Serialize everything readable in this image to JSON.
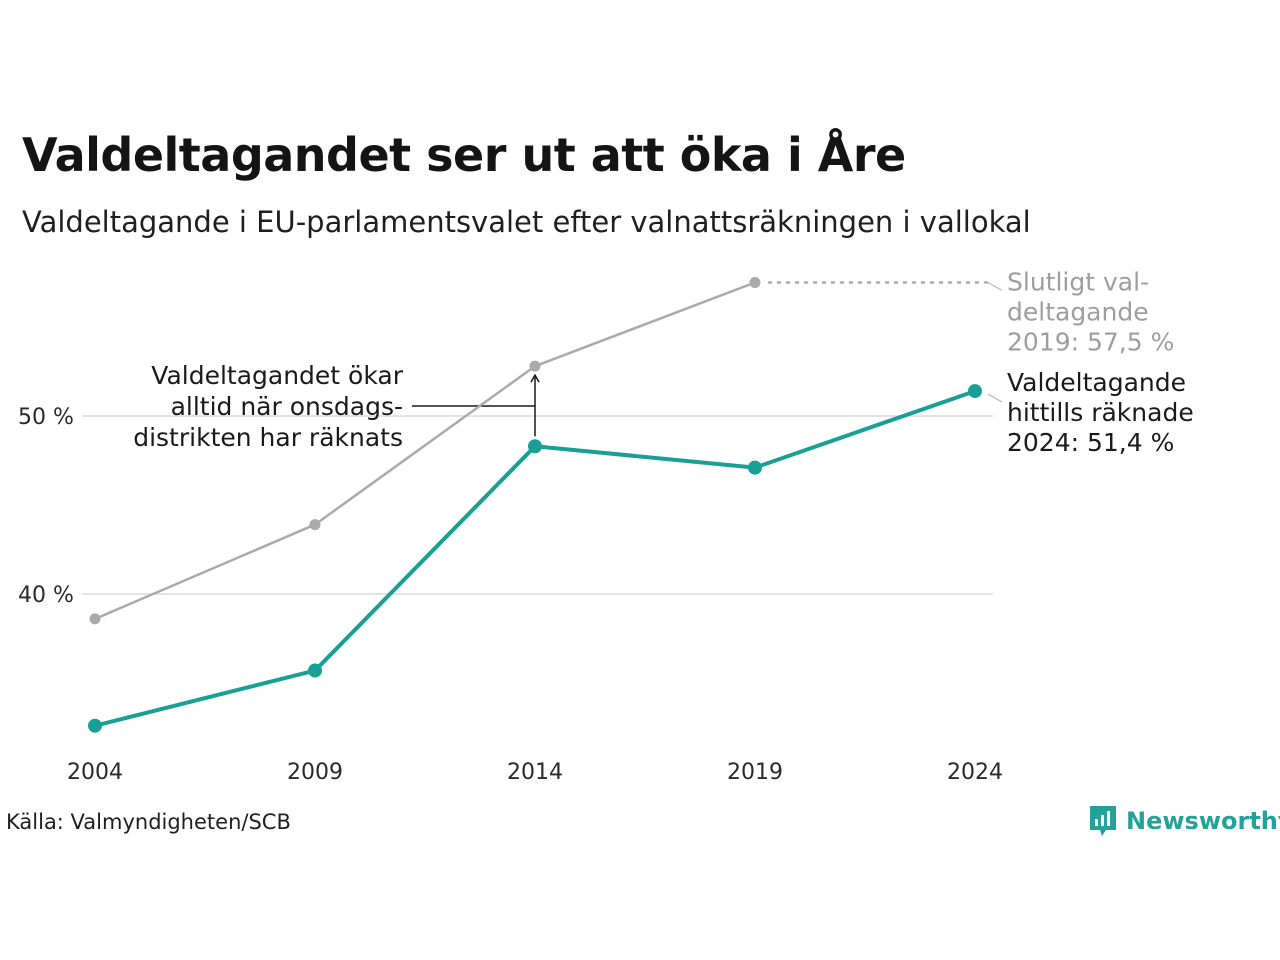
{
  "title": "Valdeltagandet ser ut att öka i Åre",
  "subtitle": "Valdeltagande i EU-parlamentsvalet efter valnattsräkningen i vallokal",
  "source": "Källa: Valmyndigheten/SCB",
  "brand": {
    "name": "Newsworthy",
    "icon": "bar-chart-icon",
    "color": "#23a297"
  },
  "chart_data": {
    "type": "line",
    "x": [
      2004,
      2009,
      2014,
      2019,
      2024
    ],
    "x_tick_labels": [
      "2004",
      "2009",
      "2014",
      "2019",
      "2024"
    ],
    "y_ticks": [
      40,
      50
    ],
    "y_tick_labels": [
      "40 %",
      "50 %"
    ],
    "ylim": [
      30,
      60
    ],
    "grid": true,
    "series": [
      {
        "key": "final",
        "color": "#aaaaaa",
        "values": [
          38.6,
          43.9,
          52.8,
          57.5,
          null
        ]
      },
      {
        "key": "count",
        "color": "#18a096",
        "values": [
          32.6,
          35.7,
          48.3,
          47.1,
          51.4
        ]
      }
    ],
    "annotations": {
      "final_2019": [
        "Slutligt val-",
        "deltagande",
        "2019: 57,5 %"
      ],
      "count_2024": [
        "Valdeltagande",
        "hittills räknade",
        "2024: 51,4 %"
      ],
      "note": [
        "Valdeltagandet ökar",
        "alltid när onsdags-",
        "distrikten har räknats"
      ]
    }
  }
}
